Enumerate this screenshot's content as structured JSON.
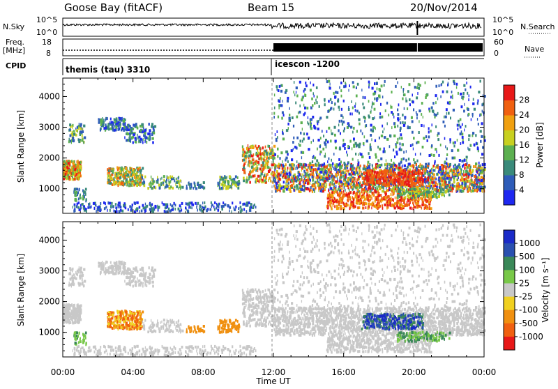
{
  "header": {
    "station": "Goose Bay (fitACF)",
    "beam": "Beam 15",
    "date": "20/Nov/2014"
  },
  "top_panels": {
    "nsky_label": "N.Sky",
    "nsky_ticks": [
      "10^5",
      "10^0"
    ],
    "nsearch_label": "N.Search",
    "nsearch_ticks": [
      "10^5",
      "10^0"
    ],
    "freq_label_1": "Freq.",
    "freq_label_2": "[MHz]",
    "freq_ticks": [
      "18",
      "8"
    ],
    "nave_label": "Nave",
    "nave_ticks": [
      "60",
      "0"
    ],
    "cpid_label": "CPID",
    "cpid_modes": [
      {
        "name": "themis (tau) 3310",
        "start_hour": 0
      },
      {
        "name": "icescon -1200",
        "start_hour": 12
      }
    ]
  },
  "chart_data": [
    {
      "type": "heatmap",
      "name": "power",
      "xlabel": "",
      "ylabel": "Slant Range [km]",
      "xlim_hours": [
        0,
        24
      ],
      "ylim": [
        200,
        4600
      ],
      "yticks": [
        1000,
        2000,
        3000,
        4000
      ],
      "colorbar": {
        "label": "Power [dB]",
        "ticks": [
          "4",
          "8",
          "12",
          "16",
          "20",
          "24",
          "28"
        ],
        "colors": [
          "#1e28f0",
          "#2e5cb8",
          "#3a8a7a",
          "#5cb050",
          "#c8d020",
          "#f0a010",
          "#f06010",
          "#e81818"
        ]
      }
    },
    {
      "type": "heatmap",
      "name": "velocity",
      "xlabel": "Time UT",
      "ylabel": "Slant Range [km]",
      "xlim_hours": [
        0,
        24
      ],
      "ylim": [
        200,
        4600
      ],
      "yticks": [
        1000,
        2000,
        3000,
        4000
      ],
      "xticks": [
        "00:00",
        "04:00",
        "08:00",
        "12:00",
        "16:00",
        "20:00",
        "00:00"
      ],
      "colorbar": {
        "label": "Velocity [m s⁻¹]",
        "ticks": [
          "1000",
          "500",
          "100",
          "25",
          "-25",
          "-100",
          "-500",
          "-1000"
        ],
        "colors": [
          "#1a2ac8",
          "#2a50b0",
          "#3a8858",
          "#78c848",
          "#c8c8c8",
          "#f0d020",
          "#f09010",
          "#f06010",
          "#e81818"
        ]
      }
    }
  ]
}
